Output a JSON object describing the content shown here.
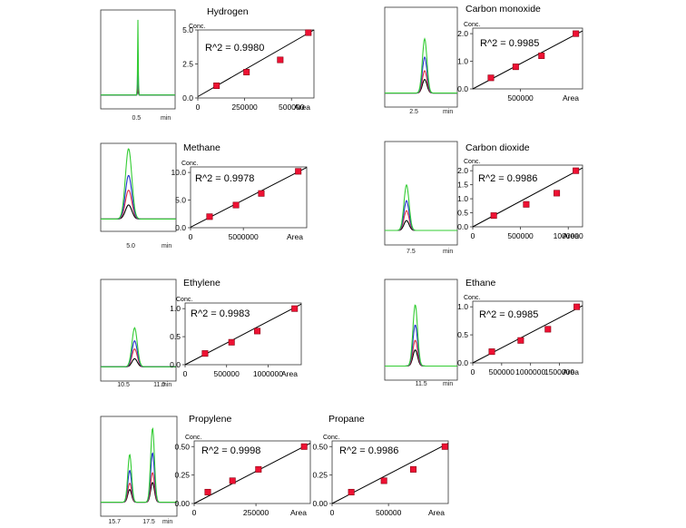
{
  "colors": {
    "trace_green": "#33cc33",
    "trace_blue": "#2233cc",
    "trace_red": "#dd3344",
    "trace_black": "#000000",
    "marker_red": "#ee1133",
    "fit_line": "#000000"
  },
  "chart_data": [
    {
      "id": "hydrogen",
      "type": "scatter",
      "title": "Hydrogen",
      "ylabel": "Conc.",
      "xlabel": "Area",
      "r2_text": "R^2 = 0.9980",
      "ylim": [
        0,
        5.0
      ],
      "xlim": [
        0,
        620000
      ],
      "yticks": [
        0,
        2.5,
        5.0
      ],
      "ytick_labels": [
        "0.0",
        "2.5",
        "5.0"
      ],
      "xticks": [
        0,
        250000,
        500000
      ],
      "xtick_labels": [
        "0",
        "250000",
        "500000"
      ],
      "x": [
        100000,
        260000,
        440000,
        590000
      ],
      "y": [
        0.9,
        1.9,
        2.8,
        4.8
      ],
      "fit": [
        [
          0,
          0.1
        ],
        [
          620000,
          5.0
        ]
      ],
      "chromatogram": {
        "axis_labels": [
          "0.5",
          "min"
        ],
        "peaks": [
          {
            "series": "green",
            "height": 0.95,
            "width": 0.006
          },
          {
            "series": "blue",
            "height": 0.57,
            "width": 0.006
          },
          {
            "series": "red",
            "height": 0.25,
            "width": 0.006
          },
          {
            "series": "black",
            "height": 0.14,
            "width": 0.006
          }
        ],
        "peak_pos": [
          0.5
        ]
      }
    },
    {
      "id": "carbon-monoxide",
      "type": "scatter",
      "title": "Carbon monoxide",
      "ylabel": "Conc.",
      "xlabel": "Area",
      "r2_text": "R^2 = 0.9985",
      "ylim": [
        0,
        2.2
      ],
      "xlim": [
        0,
        1150000
      ],
      "yticks": [
        0,
        1.0,
        2.0
      ],
      "ytick_labels": [
        "0.0",
        "1.0",
        "2.0"
      ],
      "xticks": [
        500000
      ],
      "xtick_labels": [
        "500000"
      ],
      "x": [
        190000,
        450000,
        720000,
        1080000
      ],
      "y": [
        0.4,
        0.8,
        1.2,
        2.0
      ],
      "fit": [
        [
          0,
          0.0
        ],
        [
          1150000,
          2.1
        ]
      ],
      "chromatogram": {
        "axis_labels": [
          "2.5",
          "min"
        ],
        "peaks": [
          {
            "series": "green",
            "height": 0.68,
            "width": 0.045
          },
          {
            "series": "blue",
            "height": 0.45,
            "width": 0.045
          },
          {
            "series": "red",
            "height": 0.28,
            "width": 0.045
          },
          {
            "series": "black",
            "height": 0.17,
            "width": 0.045
          }
        ],
        "peak_pos": [
          0.55
        ]
      }
    },
    {
      "id": "methane",
      "type": "scatter",
      "title": "Methane",
      "ylabel": "Conc.",
      "xlabel": "Area",
      "r2_text": "R^2 = 0.9978",
      "ylim": [
        0,
        11
      ],
      "xlim": [
        0,
        11000000
      ],
      "yticks": [
        0,
        5.0,
        10.0
      ],
      "ytick_labels": [
        "0.0",
        "5.0",
        "10.0"
      ],
      "xticks": [
        0,
        5000000
      ],
      "xtick_labels": [
        "0",
        "5000000"
      ],
      "x": [
        1800000,
        4300000,
        6700000,
        10200000
      ],
      "y": [
        2.0,
        4.1,
        6.2,
        10.2
      ],
      "fit": [
        [
          0,
          0.1
        ],
        [
          11000000,
          10.9
        ]
      ],
      "chromatogram": {
        "axis_labels": [
          "5.0",
          "min"
        ],
        "peaks": [
          {
            "series": "green",
            "height": 1.0,
            "width": 0.06
          },
          {
            "series": "blue",
            "height": 0.62,
            "width": 0.06
          },
          {
            "series": "red",
            "height": 0.41,
            "width": 0.06
          },
          {
            "series": "black",
            "height": 0.2,
            "width": 0.06
          }
        ],
        "peak_pos": [
          0.37
        ]
      }
    },
    {
      "id": "carbon-dioxide",
      "type": "scatter",
      "title": "Carbon dioxide",
      "ylabel": "Conc.",
      "xlabel": "Area",
      "r2_text": "R^2 = 0.9986",
      "ylim": [
        0,
        2.2
      ],
      "xlim": [
        0,
        1150000
      ],
      "yticks": [
        0,
        0.5,
        1.0,
        1.5,
        2.0
      ],
      "ytick_labels": [
        "0.0",
        "0.5",
        "1.0",
        "1.5",
        "2.0"
      ],
      "xticks": [
        0,
        500000,
        1000000
      ],
      "xtick_labels": [
        "0",
        "500000",
        "1000000"
      ],
      "x": [
        220000,
        560000,
        880000,
        1080000
      ],
      "y": [
        0.4,
        0.8,
        1.2,
        2.0
      ],
      "fit": [
        [
          0,
          0.0
        ],
        [
          1150000,
          2.1
        ]
      ],
      "chromatogram": {
        "axis_labels": [
          "7.5",
          "min"
        ],
        "peaks": [
          {
            "series": "green",
            "height": 0.55,
            "width": 0.05
          },
          {
            "series": "blue",
            "height": 0.36,
            "width": 0.05
          },
          {
            "series": "red",
            "height": 0.24,
            "width": 0.05
          },
          {
            "series": "black",
            "height": 0.12,
            "width": 0.05
          }
        ],
        "peak_pos": [
          0.3
        ]
      }
    },
    {
      "id": "ethylene",
      "type": "scatter",
      "title": "Ethylene",
      "ylabel": "Conc.",
      "xlabel": "Area",
      "r2_text": "R^2 = 0.9983",
      "ylim": [
        0,
        1.1
      ],
      "xlim": [
        0,
        1400000
      ],
      "yticks": [
        0,
        0.5,
        1.0
      ],
      "ytick_labels": [
        "0.0",
        "0.5",
        "1.0"
      ],
      "xticks": [
        0,
        500000,
        1000000
      ],
      "xtick_labels": [
        "0",
        "500000",
        "1000000"
      ],
      "x": [
        240000,
        560000,
        870000,
        1320000
      ],
      "y": [
        0.2,
        0.4,
        0.6,
        1.0
      ],
      "fit": [
        [
          0,
          0.0
        ],
        [
          1400000,
          1.08
        ]
      ],
      "chromatogram": {
        "axis_labels": [
          "10.5",
          "11.0",
          "min"
        ],
        "peaks": [
          {
            "series": "green",
            "height": 0.48,
            "width": 0.05
          },
          {
            "series": "blue",
            "height": 0.32,
            "width": 0.05
          },
          {
            "series": "red",
            "height": 0.22,
            "width": 0.05
          },
          {
            "series": "black",
            "height": 0.1,
            "width": 0.05
          }
        ],
        "peak_pos": [
          0.45
        ]
      }
    },
    {
      "id": "ethane",
      "type": "scatter",
      "title": "Ethane",
      "ylabel": "Conc.",
      "xlabel": "Area",
      "r2_text": "R^2 = 0.9985",
      "ylim": [
        0,
        1.1
      ],
      "xlim": [
        0,
        1900000
      ],
      "yticks": [
        0,
        0.5,
        1.0
      ],
      "ytick_labels": [
        "0.0",
        "0.5",
        "1.0"
      ],
      "xticks": [
        0,
        500000,
        1000000,
        1500000
      ],
      "xtick_labels": [
        "0",
        "500000",
        "1000000",
        "1500000"
      ],
      "x": [
        330000,
        830000,
        1300000,
        1800000
      ],
      "y": [
        0.2,
        0.4,
        0.6,
        1.0
      ],
      "fit": [
        [
          0,
          0.0
        ],
        [
          1900000,
          1.02
        ]
      ],
      "chromatogram": {
        "axis_labels": [
          "11.5",
          "min"
        ],
        "peaks": [
          {
            "series": "green",
            "height": 0.76,
            "width": 0.045
          },
          {
            "series": "blue",
            "height": 0.51,
            "width": 0.045
          },
          {
            "series": "red",
            "height": 0.32,
            "width": 0.045
          },
          {
            "series": "black",
            "height": 0.2,
            "width": 0.045
          }
        ],
        "peak_pos": [
          0.42
        ]
      }
    },
    {
      "id": "propylene",
      "type": "scatter",
      "title": "Propylene",
      "ylabel": "Conc.",
      "xlabel": "Area",
      "r2_text": "R^2 = 0.9998",
      "ylim": [
        0,
        0.55
      ],
      "xlim": [
        0,
        470000
      ],
      "yticks": [
        0,
        0.25,
        0.5
      ],
      "ytick_labels": [
        "0.00",
        "0.25",
        "0.50"
      ],
      "xticks": [
        0,
        250000
      ],
      "xtick_labels": [
        "0",
        "250000"
      ],
      "x": [
        55000,
        155000,
        260000,
        445000
      ],
      "y": [
        0.1,
        0.2,
        0.3,
        0.5
      ],
      "fit": [
        [
          0,
          0.0
        ],
        [
          470000,
          0.53
        ]
      ],
      "chromatogram": {
        "axis_labels": [
          "15.7",
          "17.5",
          "min"
        ],
        "peaks": [
          {
            "series": "green",
            "height": 0.6,
            "width": 0.035
          },
          {
            "series": "blue",
            "height": 0.4,
            "width": 0.035
          },
          {
            "series": "red",
            "height": 0.24,
            "width": 0.035
          },
          {
            "series": "black",
            "height": 0.16,
            "width": 0.035
          }
        ],
        "peak_pos": [
          0.38,
          0.68
        ],
        "second_peak_scale": 1.55
      }
    },
    {
      "id": "propane",
      "type": "scatter",
      "title": "Propane",
      "ylabel": "Conc.",
      "xlabel": "Area",
      "r2_text": "R^2 = 0.9986",
      "ylim": [
        0,
        0.55
      ],
      "xlim": [
        0,
        1030000
      ],
      "yticks": [
        0,
        0.25,
        0.5
      ],
      "ytick_labels": [
        "0.00",
        "0.25",
        "0.50"
      ],
      "xticks": [
        0,
        500000
      ],
      "xtick_labels": [
        "0",
        "500000"
      ],
      "x": [
        170000,
        460000,
        720000,
        1000000
      ],
      "y": [
        0.1,
        0.2,
        0.3,
        0.5
      ],
      "fit": [
        [
          0,
          0.0
        ],
        [
          1030000,
          0.53
        ]
      ],
      "chromatogram": null
    }
  ]
}
